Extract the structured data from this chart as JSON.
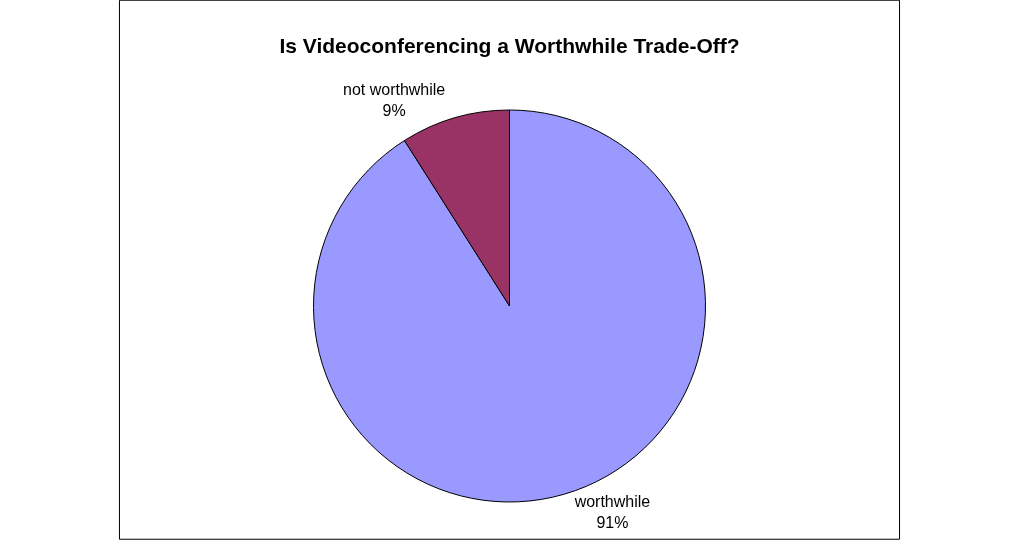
{
  "chart_data": {
    "type": "pie",
    "title": "Is Videoconferencing a Worthwhile Trade-Off?",
    "categories": [
      "worthwhile",
      "not worthwhile"
    ],
    "values": [
      91,
      9
    ],
    "value_labels": [
      "91%",
      "9%"
    ],
    "colors": [
      "#9999ff",
      "#993366"
    ],
    "legend": false
  }
}
